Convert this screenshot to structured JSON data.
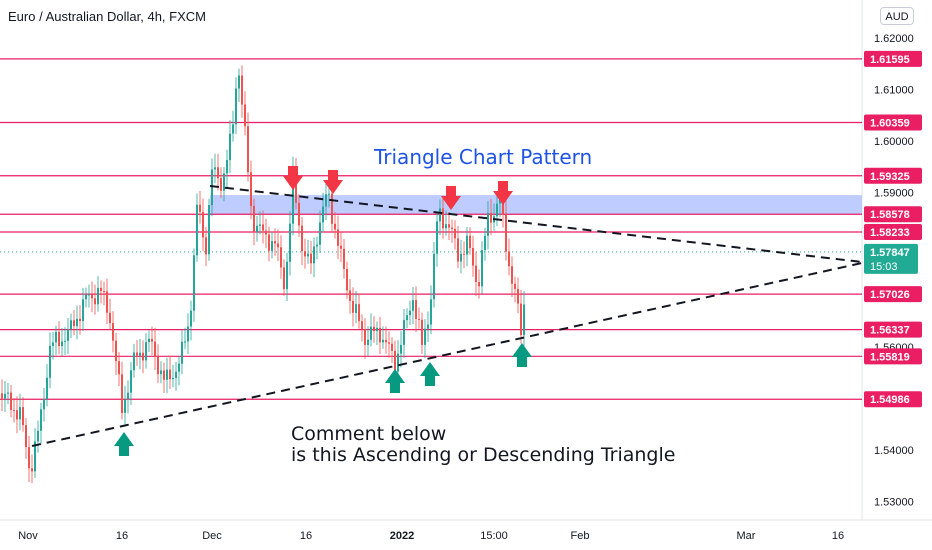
{
  "header": {
    "title": "Euro / Australian Dollar, 4h, FXCM",
    "currency": "AUD"
  },
  "colors": {
    "up": "#26a69a",
    "down": "#ef5350",
    "level_line": "#e91e63",
    "zone_fill": "#b3c3ff",
    "annotation_blue": "#1e53e5",
    "arrow_down": "#f23645",
    "arrow_up": "#089981",
    "current_price": "#22ab94"
  },
  "chart_data": {
    "type": "candlestick",
    "symbol": "EUR/AUD",
    "timeframe": "4h",
    "y_ticks": [
      1.62,
      1.61,
      1.6,
      1.59,
      1.56,
      1.54,
      1.53
    ],
    "x_ticks": [
      "Nov",
      "16",
      "Dec",
      "16",
      "2022",
      "15:00",
      "Feb",
      "Mar",
      "16"
    ],
    "ylim": [
      1.526,
      1.626
    ],
    "levels": [
      {
        "label": "1.61595",
        "value": 1.61595
      },
      {
        "label": "1.60359",
        "value": 1.60359
      },
      {
        "label": "1.59325",
        "value": 1.59325
      },
      {
        "label": "1.58578",
        "value": 1.58578
      },
      {
        "label": "1.58233",
        "value": 1.58233
      },
      {
        "label": "1.57026",
        "value": 1.57026
      },
      {
        "label": "1.56337",
        "value": 1.56337
      },
      {
        "label": "1.55819",
        "value": 1.55819
      },
      {
        "label": "1.54986",
        "value": 1.54986
      }
    ],
    "current_price": {
      "label": "1.57847",
      "countdown": "15:03",
      "value": 1.57847
    },
    "resistance_zone": [
      1.58578,
      1.5895
    ],
    "annotations": {
      "pattern_title": "Triangle Chart Pattern",
      "comment_line1": "Comment below",
      "comment_line2": "is this Ascending or Descending Triangle"
    }
  }
}
